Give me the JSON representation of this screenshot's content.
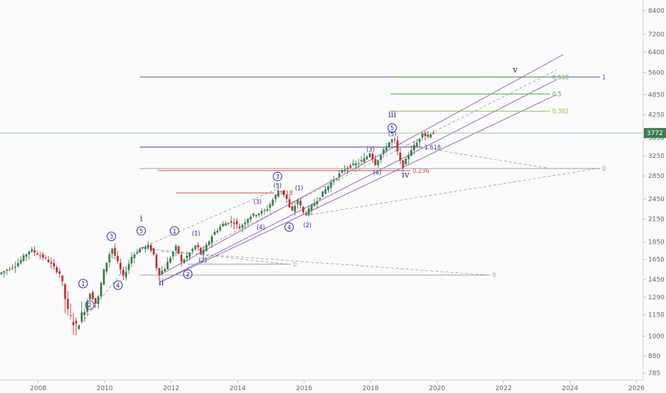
{
  "chart_data": {
    "type": "candlestick",
    "title": "",
    "xlabel": "",
    "ylabel": "",
    "yscale": "log",
    "xlim": [
      2006.85,
      2026.2
    ],
    "ylim": [
      750,
      9000
    ],
    "last_price": "3772",
    "x_ticks": [
      "2008",
      "2010",
      "2012",
      "2014",
      "2016",
      "2018",
      "2020",
      "2022",
      "2024",
      "2026"
    ],
    "y_ticks": [
      "8400",
      "7200",
      "6400",
      "5600",
      "4850",
      "4250",
      "3650",
      "3250",
      "2850",
      "2450",
      "2150",
      "1850",
      "1650",
      "1450",
      "1290",
      "1150",
      "1000",
      "880",
      "785"
    ],
    "price_path": [
      [
        2006.85,
        1500
      ],
      [
        2007.4,
        1600
      ],
      [
        2007.8,
        1760
      ],
      [
        2008.3,
        1650
      ],
      [
        2008.7,
        1500
      ],
      [
        2008.95,
        1150
      ],
      [
        2009.2,
        1060
      ],
      [
        2009.45,
        1210
      ],
      [
        2009.6,
        1330
      ],
      [
        2009.8,
        1220
      ],
      [
        2010.0,
        1520
      ],
      [
        2010.25,
        1790
      ],
      [
        2010.45,
        1600
      ],
      [
        2010.6,
        1470
      ],
      [
        2010.85,
        1680
      ],
      [
        2011.1,
        1770
      ],
      [
        2011.35,
        1800
      ],
      [
        2011.5,
        1730
      ],
      [
        2011.65,
        1490
      ],
      [
        2011.85,
        1560
      ],
      [
        2012.05,
        1700
      ],
      [
        2012.2,
        1800
      ],
      [
        2012.35,
        1620
      ],
      [
        2012.55,
        1700
      ],
      [
        2012.8,
        1820
      ],
      [
        2012.95,
        1700
      ],
      [
        2013.3,
        1950
      ],
      [
        2013.6,
        2080
      ],
      [
        2013.9,
        2120
      ],
      [
        2014.1,
        2030
      ],
      [
        2014.4,
        2190
      ],
      [
        2014.7,
        2240
      ],
      [
        2014.9,
        2280
      ],
      [
        2015.2,
        2520
      ],
      [
        2015.3,
        2620
      ],
      [
        2015.5,
        2480
      ],
      [
        2015.65,
        2230
      ],
      [
        2015.85,
        2440
      ],
      [
        2016.05,
        2200
      ],
      [
        2016.4,
        2420
      ],
      [
        2016.7,
        2620
      ],
      [
        2016.9,
        2760
      ],
      [
        2017.3,
        3010
      ],
      [
        2017.6,
        3080
      ],
      [
        2017.9,
        3200
      ],
      [
        2018.05,
        3350
      ],
      [
        2018.15,
        3050
      ],
      [
        2018.4,
        3320
      ],
      [
        2018.6,
        3550
      ],
      [
        2018.75,
        3640
      ],
      [
        2018.9,
        3180
      ],
      [
        2019.0,
        3020
      ],
      [
        2019.25,
        3380
      ],
      [
        2019.45,
        3550
      ],
      [
        2019.6,
        3800
      ],
      [
        2019.75,
        3660
      ],
      [
        2019.85,
        3772
      ]
    ],
    "horizontal_levels": [
      {
        "label": "1",
        "value": 5440,
        "color": "#5a5ab4",
        "from": 2011.05,
        "to": 2024.9
      },
      {
        "label": "0.618",
        "value": 5440,
        "color": "#6aaa50",
        "from": 2018.6,
        "to": 2023.4
      },
      {
        "label": "0.5",
        "value": 4870,
        "color": "#4caf50",
        "from": 2018.6,
        "to": 2023.4
      },
      {
        "label": "0.382",
        "value": 4350,
        "color": "#8bc34a",
        "from": 2018.6,
        "to": 2023.4
      },
      {
        "label": "1.618",
        "value": 3440,
        "color": "#4a3e9a",
        "from": 2011.05,
        "to": 2019.55
      },
      {
        "label": "0.236",
        "value": 2950,
        "color": "#d84848",
        "from": 2011.6,
        "to": 2019.2
      },
      {
        "label": "0",
        "value": 2990,
        "color": "#9e9e9e",
        "from": 2011.05,
        "to": 2024.9
      },
      {
        "label": "2.618",
        "value": 2550,
        "color": "#d84848",
        "from": 2012.15,
        "to": 2015.1
      },
      {
        "label": "0",
        "value": 1600,
        "color": "#9e9e9e",
        "from": 2012.5,
        "to": 2015.6
      },
      {
        "label": "0",
        "value": 1490,
        "color": "#9e9e9e",
        "from": 2011.05,
        "to": 2021.6
      }
    ],
    "annotations": [
      {
        "text": "1",
        "style": "circle",
        "x": 2009.35,
        "y": 1410
      },
      {
        "text": "2",
        "style": "circle",
        "x": 2009.55,
        "y": 1225
      },
      {
        "text": "3",
        "style": "circle",
        "x": 2010.2,
        "y": 1920
      },
      {
        "text": "4",
        "style": "circle",
        "x": 2010.4,
        "y": 1395
      },
      {
        "text": "i",
        "style": "roman",
        "x": 2011.1,
        "y": 2120
      },
      {
        "text": "5",
        "style": "circle",
        "x": 2011.1,
        "y": 1990
      },
      {
        "text": "ii",
        "style": "roman",
        "x": 2011.7,
        "y": 1395
      },
      {
        "text": "1",
        "style": "circle",
        "x": 2012.1,
        "y": 1990
      },
      {
        "text": "2",
        "style": "circle",
        "x": 2012.5,
        "y": 1500
      },
      {
        "text": "(1)",
        "style": "paren",
        "x": 2012.75,
        "y": 1930
      },
      {
        "text": "(2)",
        "style": "paren",
        "x": 2012.95,
        "y": 1620
      },
      {
        "text": "(3)",
        "style": "paren",
        "x": 2014.6,
        "y": 2370
      },
      {
        "text": "(4)",
        "style": "paren",
        "x": 2014.7,
        "y": 2010
      },
      {
        "text": "3",
        "style": "circle",
        "x": 2015.2,
        "y": 2840
      },
      {
        "text": "(5)",
        "style": "paren",
        "x": 2015.2,
        "y": 2640
      },
      {
        "text": "4",
        "style": "circle",
        "x": 2015.55,
        "y": 2040
      },
      {
        "text": "(1)",
        "style": "paren",
        "x": 2015.85,
        "y": 2600
      },
      {
        "text": "(2)",
        "style": "paren",
        "x": 2016.1,
        "y": 2040
      },
      {
        "text": "(3)",
        "style": "paren",
        "x": 2018.0,
        "y": 3340
      },
      {
        "text": "(4)",
        "style": "paren",
        "x": 2018.2,
        "y": 2870
      },
      {
        "text": "iii",
        "style": "roman",
        "x": 2018.65,
        "y": 4180
      },
      {
        "text": "5",
        "style": "circle",
        "x": 2018.65,
        "y": 3900
      },
      {
        "text": "(5)",
        "style": "paren",
        "x": 2018.65,
        "y": 3700
      },
      {
        "text": "iv",
        "style": "roman",
        "x": 2019.05,
        "y": 2820
      },
      {
        "text": "v",
        "style": "roman",
        "x": 2022.35,
        "y": 5600
      }
    ]
  }
}
